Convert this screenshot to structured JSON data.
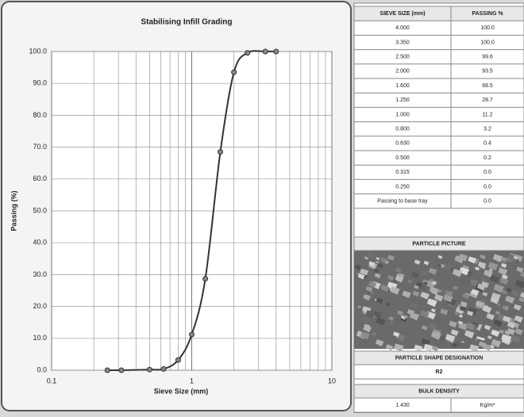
{
  "chart_data": {
    "type": "line",
    "title": "Stabilising Infill Grading",
    "x_label": "Sieve Size (mm)",
    "y_label": "Passing (%)",
    "x": [
      0.25,
      0.315,
      0.5,
      0.63,
      0.8,
      1.0,
      1.25,
      1.6,
      2.0,
      2.5,
      3.35,
      4.0
    ],
    "values": [
      0.0,
      0.0,
      0.2,
      0.4,
      3.2,
      11.2,
      28.7,
      68.5,
      93.5,
      99.6,
      100.0,
      100.0
    ],
    "color": "#333333",
    "x_scale": "log",
    "xlim": [
      0.1,
      10
    ],
    "xticks": [
      0.1,
      1,
      10
    ],
    "ylim": [
      0,
      100
    ],
    "yticks": [
      {
        "value": 0,
        "label": "0.0"
      },
      {
        "value": 10,
        "label": "10.0"
      },
      {
        "value": 20,
        "label": "20.0"
      },
      {
        "value": 30,
        "label": "30.0"
      },
      {
        "value": 40,
        "label": "40.0"
      },
      {
        "value": 50,
        "label": "50.0"
      },
      {
        "value": 60,
        "label": "60.0"
      },
      {
        "value": 70,
        "label": "70.0"
      },
      {
        "value": 80,
        "label": "80.0"
      },
      {
        "value": 90,
        "label": "90.0"
      },
      {
        "value": 100,
        "label": "100.0"
      }
    ],
    "grid": true
  },
  "table": {
    "header": [
      "SIEVE SIZE (mm)",
      "PASSING %"
    ],
    "rows": [
      [
        "4.000",
        "100.0"
      ],
      [
        "3.350",
        "100.0"
      ],
      [
        "2.500",
        "99.6"
      ],
      [
        "2.000",
        "93.5"
      ],
      [
        "1.600",
        "68.5"
      ],
      [
        "1.250",
        "28.7"
      ],
      [
        "1.000",
        "11.2"
      ],
      [
        "0.800",
        "3.2"
      ],
      [
        "0.630",
        "0.4"
      ],
      [
        "0.500",
        "0.2"
      ],
      [
        "0.315",
        "0.0"
      ],
      [
        "0.250",
        "0.0"
      ],
      [
        "Passing to base tray",
        "0.0"
      ]
    ]
  },
  "particle_picture": {
    "title": "PARTICLE PICTURE"
  },
  "particle_shape": {
    "title": "PARTICLE SHAPE DESIGNATION",
    "value": "R2"
  },
  "bulk_density": {
    "title": "BULK DENSITY",
    "value": "1.430",
    "unit": "Kg/m³"
  }
}
